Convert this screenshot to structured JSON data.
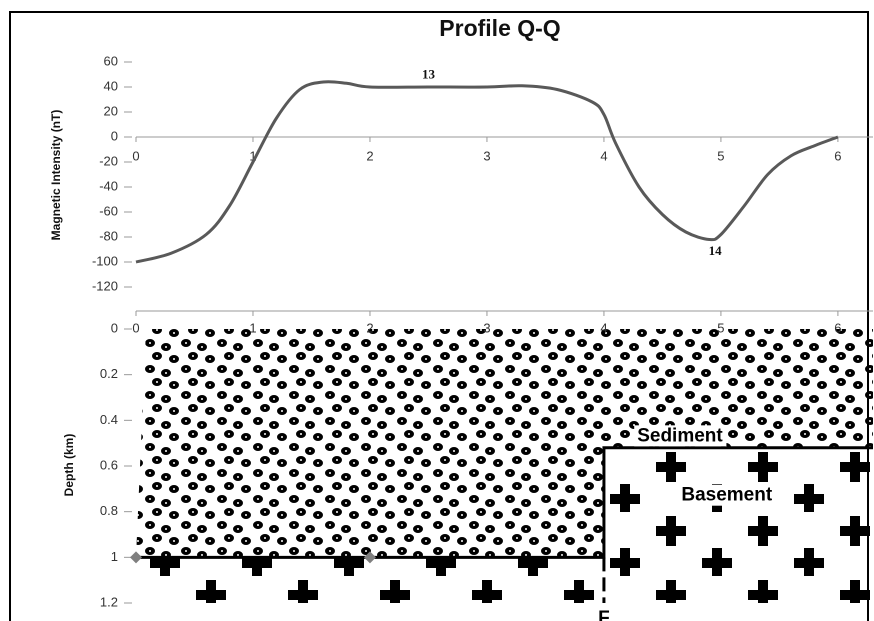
{
  "chart_data": [
    {
      "type": "line",
      "title": "Profile Q-Q",
      "ylabel": "Magnetic Intensity (nT)",
      "x": [
        0,
        0.3,
        0.6,
        0.8,
        1.0,
        1.2,
        1.4,
        1.6,
        1.8,
        2.0,
        2.5,
        3.0,
        3.3,
        3.6,
        3.9,
        4.0,
        4.1,
        4.3,
        4.5,
        4.7,
        4.9,
        5.0,
        5.2,
        5.4,
        5.6,
        5.8,
        6.0
      ],
      "values": [
        -100,
        -93,
        -78,
        -55,
        -20,
        15,
        38,
        44,
        43,
        40,
        40,
        40,
        41,
        38,
        28,
        18,
        -5,
        -40,
        -62,
        -76,
        -82,
        -78,
        -55,
        -30,
        -15,
        -7,
        0
      ],
      "color": "#595959",
      "xlim": [
        0,
        6.3
      ],
      "xticks": [
        0,
        1,
        2,
        3,
        4,
        5,
        6
      ],
      "ylim": [
        -120,
        60
      ],
      "yticks": [
        -120,
        -100,
        -80,
        -60,
        -40,
        -20,
        0,
        20,
        40,
        60
      ],
      "annotations": [
        {
          "text": "13",
          "x": 2.5,
          "y": 49
        },
        {
          "text": "14",
          "x": 4.95,
          "y": -92
        }
      ]
    },
    {
      "type": "section",
      "ylabel": "Depth (km)",
      "boundary": {
        "x": [
          0,
          4,
          4,
          6.3
        ],
        "y": [
          1,
          1,
          0.52,
          0.52
        ]
      },
      "markers": {
        "x": [
          0,
          2
        ],
        "y": [
          1,
          1
        ],
        "color": "#7f7f7f"
      },
      "fault": {
        "x": [
          4,
          4
        ],
        "y": [
          1,
          1.2
        ]
      },
      "xlim": [
        0,
        6.3
      ],
      "xticks": [
        0,
        1,
        2,
        3,
        4,
        5,
        6
      ],
      "ylim": [
        0,
        1.2
      ],
      "yticks": [
        0,
        0.2,
        0.4,
        0.6,
        0.8,
        1,
        1.2
      ],
      "annotations": [
        {
          "text": "Sediment",
          "x": 4.65,
          "y": 0.47
        },
        {
          "text": "Basement",
          "x": 5.05,
          "y": 0.73
        },
        {
          "text": "F",
          "x": 4.0,
          "y": 1.27
        }
      ]
    }
  ]
}
